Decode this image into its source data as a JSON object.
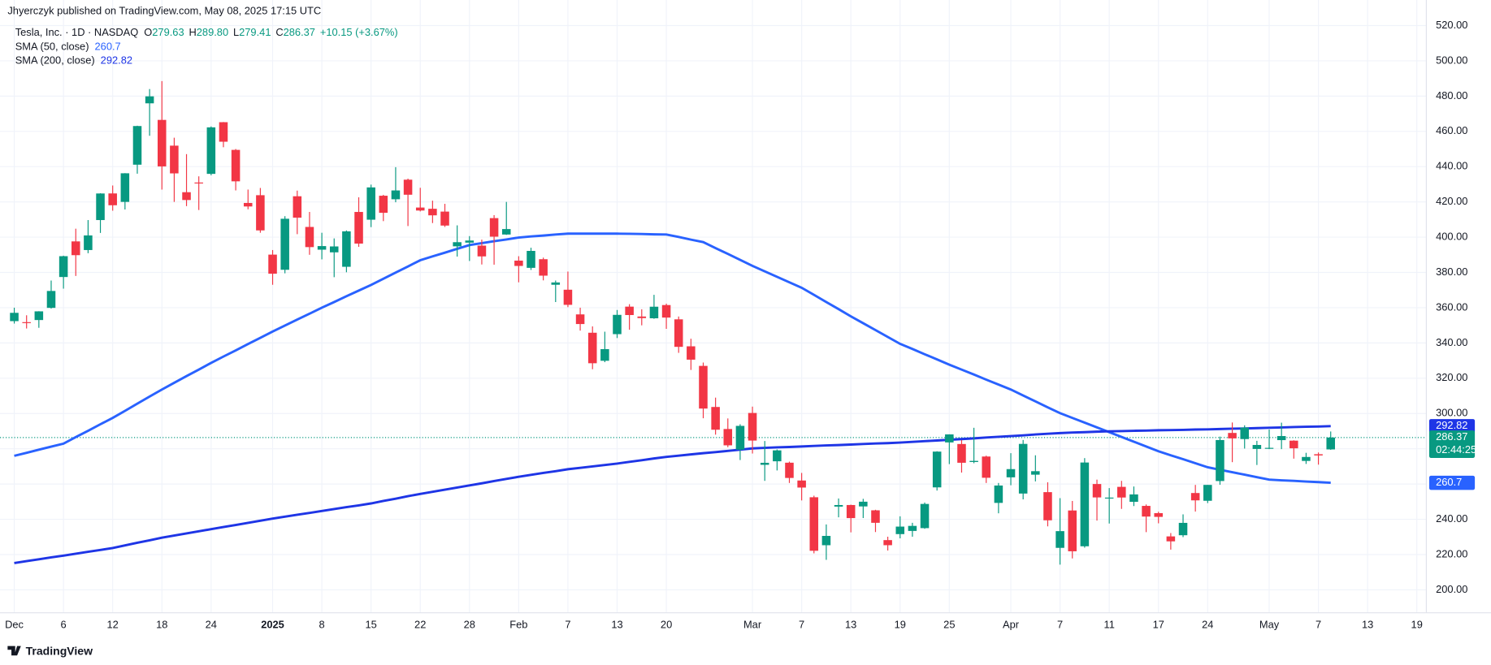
{
  "header": {
    "publisher": "Jhyerczyk published on TradingView.com, May 08, 2025 17:15 UTC",
    "symbol": "Tesla, Inc. · 1D · NASDAQ",
    "quote": [
      {
        "key": "O",
        "value": "279.63"
      },
      {
        "key": "H",
        "value": "289.80"
      },
      {
        "key": "L",
        "value": "279.41"
      },
      {
        "key": "C",
        "value": "286.37"
      }
    ],
    "change": "+10.15 (+3.67%)"
  },
  "footer": {
    "brand": "TradingView"
  },
  "chart_data": {
    "type": "candlestick",
    "categories": [
      "Dec",
      null,
      null,
      null,
      "6",
      null,
      null,
      null,
      "12",
      null,
      null,
      null,
      "18",
      null,
      null,
      null,
      "24",
      null,
      null,
      null,
      null,
      "2025",
      null,
      null,
      null,
      "8",
      null,
      null,
      null,
      "15",
      null,
      null,
      null,
      "22",
      null,
      null,
      null,
      "28",
      null,
      null,
      null,
      "Feb",
      null,
      null,
      null,
      "7",
      null,
      null,
      null,
      "13",
      null,
      null,
      null,
      "20",
      null,
      null,
      null,
      null,
      null,
      null,
      "Mar",
      null,
      null,
      null,
      "7",
      null,
      null,
      null,
      "13",
      null,
      null,
      null,
      "19",
      null,
      null,
      null,
      "25",
      null,
      null,
      null,
      null,
      "Apr",
      null,
      null,
      null,
      "7",
      null,
      null,
      null,
      "11",
      null,
      null,
      null,
      "17",
      null,
      null,
      null,
      "24",
      null,
      null,
      null,
      null,
      "May",
      null,
      null,
      null,
      "7",
      null,
      null,
      null,
      "13",
      null,
      null,
      null,
      "19"
    ],
    "open": [
      352.38,
      351.8,
      353,
      359.9,
      377.4,
      397.6,
      392.7,
      409.7,
      424.8,
      420,
      441.1,
      475.9,
      466.5,
      451.9,
      425.5,
      431,
      435.9,
      465.2,
      449.5,
      419.4,
      423.8,
      390.1,
      381.5,
      423.2,
      405.8,
      392.9,
      391.4,
      383.2,
      414.3,
      409.9,
      423.5,
      421.5,
      432.6,
      416.8,
      416.1,
      414.5,
      394.8,
      396.9,
      395.2,
      410.8,
      401.5,
      386.7,
      382.6,
      387.5,
      373,
      370.2,
      356.2,
      345.8,
      329.9,
      345,
      360.6,
      355,
      354,
      361.5,
      353.4,
      338.1,
      327,
      303.7,
      291.2,
      279.5,
      300.3,
      270.9,
      272.9,
      272.1,
      262,
      252.5,
      225.3,
      247.2,
      248.1,
      247.3,
      245.1,
      228.2,
      231.6,
      233.4,
      234.99,
      258.1,
      283.6,
      282.7,
      272.5,
      275.6,
      249.3,
      263.8,
      254.6,
      265.3,
      255.4,
      223.8,
      245,
      224.7,
      260,
      251.8,
      258.4,
      249.9,
      247.6,
      243.5,
      230.3,
      230.96,
      254.9,
      250.5,
      261.7,
      288.98,
      285.5,
      279.9,
      280,
      284.9,
      284.6,
      273.1,
      276.9,
      279.63,
      null,
      null,
      null,
      null,
      null,
      null,
      null
    ],
    "high": [
      360,
      355.7,
      358,
      375.4,
      389.5,
      404.8,
      409.7,
      424.9,
      429.3,
      436.3,
      463.2,
      484,
      488.5,
      456.4,
      447.1,
      434.5,
      462.8,
      465.3,
      450,
      427,
      427.9,
      392.7,
      411.9,
      426.4,
      414.3,
      402.5,
      399.3,
      403.8,
      422.6,
      429.8,
      424,
      439.7,
      433.2,
      428,
      420.7,
      418.9,
      406.7,
      400.6,
      398.6,
      412.5,
      420,
      389.2,
      394,
      388.4,
      375.4,
      380.5,
      360,
      349.4,
      346.4,
      358.7,
      362,
      359.1,
      367.3,
      362.3,
      355,
      342.4,
      328.9,
      309,
      297.2,
      293.9,
      303.9,
      284.4,
      279.6,
      272.7,
      266.3,
      253.4,
      237.1,
      251.8,
      248.3,
      251.6,
      245.4,
      230.1,
      241.7,
      238,
      249.5,
      278.6,
      288.2,
      284.9,
      291.9,
      276.1,
      260.6,
      277.5,
      285,
      276.3,
      261,
      252,
      250.4,
      274.7,
      262.5,
      257.7,
      261.8,
      258.6,
      248.4,
      244.3,
      232.2,
      242.8,
      259.5,
      259.5,
      286.9,
      294.9,
      293.3,
      284.5,
      290.9,
      294.8,
      284.8,
      277.7,
      277.9,
      289.8,
      null,
      null,
      null,
      null,
      null,
      null,
      null
    ],
    "low": [
      351,
      348.2,
      348.6,
      359.5,
      370.8,
      378,
      390.9,
      402.4,
      415,
      415.7,
      436,
      457.5,
      427,
      420,
      417.6,
      415.4,
      435.1,
      451,
      426.5,
      415.8,
      402.5,
      373,
      379.5,
      401.7,
      390,
      387.4,
      377.3,
      380.1,
      394.5,
      405.7,
      409.1,
      419.8,
      406.3,
      414.6,
      408,
      405.8,
      389,
      386.5,
      384.5,
      384.4,
      401.3,
      374.4,
      381.4,
      375.5,
      363.2,
      360.3,
      347,
      325.1,
      329.1,
      342.8,
      347.5,
      350,
      353.7,
      348,
      334.4,
      324.7,
      297.3,
      288,
      280.9,
      273.6,
      277.3,
      261.8,
      267.7,
      260.6,
      250.7,
      220.7,
      217,
      241.1,
      232.6,
      240.7,
      232.8,
      222.3,
      229.2,
      230.1,
      234.6,
      256.3,
      271.3,
      266.5,
      271.8,
      260.6,
      243.4,
      259.3,
      251.3,
      261.5,
      236,
      214.3,
      217.8,
      223.9,
      239.3,
      237.6,
      245.9,
      247.5,
      232.7,
      237.7,
      222.8,
      229.9,
      244.4,
      249.2,
      259.6,
      272.4,
      280.1,
      270.8,
      279.8,
      279.8,
      274.4,
      271.4,
      271,
      279.41,
      null,
      null,
      null,
      null,
      null,
      null,
      null
    ],
    "close": [
      357.09,
      351.42,
      357.93,
      369.49,
      389.22,
      389.79,
      400.99,
      424.77,
      418.1,
      436.23,
      463.02,
      479.86,
      440.13,
      436.17,
      421.06,
      430.6,
      462.28,
      454.13,
      431.66,
      417.41,
      403.84,
      379.28,
      410.44,
      411.05,
      394.36,
      394.94,
      394.74,
      403.31,
      396.36,
      428.22,
      413.82,
      426.5,
      424.07,
      415.11,
      412.38,
      406.58,
      397.15,
      398.09,
      389.1,
      400.28,
      404.6,
      383.68,
      392.21,
      378.17,
      374.32,
      361.62,
      350.73,
      328.5,
      336.51,
      355.94,
      355.84,
      354.11,
      360.56,
      354.4,
      337.8,
      330.53,
      302.8,
      290.8,
      281.95,
      292.98,
      284.65,
      272.04,
      279.1,
      263.45,
      258,
      222.15,
      230.58,
      248.09,
      240.68,
      249.98,
      238.01,
      225.31,
      235.86,
      236.26,
      248.71,
      278.39,
      288.14,
      272.06,
      273.13,
      263.55,
      259.16,
      268.46,
      282.76,
      267.28,
      239.43,
      233.29,
      221.86,
      272.2,
      252.4,
      252.31,
      252.35,
      254.11,
      241.55,
      241.37,
      227.5,
      237.97,
      250.74,
      259.51,
      284.95,
      285.88,
      292.03,
      282.16,
      280.52,
      287.21,
      280.26,
      275.35,
      276.22,
      286.37,
      null,
      null,
      null,
      null,
      null,
      null,
      null
    ],
    "up_color": "#089981",
    "down_color": "#f23645",
    "overlays": [
      {
        "name": "SMA (50, close)",
        "color": "#2962ff",
        "values": [
          276,
          277.7,
          279.5,
          281.2,
          282.9,
          286.6,
          290.2,
          293.9,
          297.5,
          301.5,
          305.6,
          309.6,
          313.6,
          317.4,
          321.2,
          324.9,
          328.7,
          332.3,
          335.8,
          339.4,
          342.9,
          346.5,
          349.9,
          353.3,
          356.6,
          360,
          363.2,
          366.5,
          369.7,
          372.9,
          376.4,
          379.9,
          383.4,
          386.9,
          389.1,
          391.2,
          393.4,
          395.5,
          396.6,
          397.7,
          398.7,
          399.8,
          400.4,
          400.9,
          401.5,
          402,
          402,
          402,
          402,
          402,
          401.9,
          401.8,
          401.6,
          401.5,
          400.1,
          398.6,
          397.2,
          393.8,
          390.5,
          387.1,
          383.7,
          380.6,
          377.5,
          374.4,
          371.3,
          367.3,
          363.2,
          359.2,
          355.1,
          351.2,
          347.3,
          343.4,
          339.5,
          336.6,
          333.6,
          330.7,
          327.7,
          324.9,
          322.1,
          319.2,
          316.4,
          313.6,
          310.2,
          306.9,
          303.5,
          300.2,
          297.5,
          294.8,
          292.1,
          289.4,
          286.7,
          284,
          281.3,
          278.6,
          276.3,
          274.1,
          271.8,
          269.5,
          268.1,
          266.7,
          265.3,
          263.9,
          262.5,
          262.1,
          261.8,
          261.4,
          261.1,
          260.7,
          null,
          null,
          null,
          null,
          null,
          null,
          null
        ]
      },
      {
        "name": "SMA (200, close)",
        "color": "#1e35e6",
        "values": [
          215.2,
          216.3,
          217.3,
          218.4,
          219.4,
          220.5,
          221.6,
          222.6,
          223.7,
          225.2,
          226.7,
          228.1,
          229.6,
          230.8,
          232,
          233.2,
          234.4,
          235.6,
          236.8,
          238,
          239.2,
          240.4,
          241.5,
          242.6,
          243.6,
          244.7,
          245.8,
          246.9,
          247.9,
          249,
          250.4,
          251.7,
          253.1,
          254.4,
          255.6,
          256.8,
          258,
          259.2,
          260.4,
          261.7,
          262.9,
          264.1,
          265.2,
          266.3,
          267.3,
          268.4,
          269.2,
          270,
          270.8,
          271.6,
          272.6,
          273.5,
          274.5,
          275.4,
          276.1,
          276.8,
          277.5,
          278.1,
          278.8,
          279.5,
          280.2,
          280.5,
          280.8,
          281,
          281.3,
          281.6,
          281.9,
          282.1,
          282.4,
          282.7,
          283,
          283.2,
          283.5,
          283.9,
          284.3,
          284.7,
          285.1,
          285.5,
          285.9,
          286.4,
          286.8,
          287.2,
          287.6,
          288.1,
          288.5,
          288.9,
          289.2,
          289.4,
          289.7,
          289.9,
          290,
          290.2,
          290.3,
          290.5,
          290.6,
          290.7,
          290.9,
          291,
          291.2,
          291.4,
          291.5,
          291.7,
          291.9,
          292.1,
          292.3,
          292.5,
          292.6,
          292.82,
          null,
          null,
          null,
          null,
          null,
          null,
          null
        ]
      }
    ],
    "ylim": [
      187,
      534.5
    ],
    "yticks": [
      {
        "value": 200,
        "label": "200.00"
      },
      {
        "value": 220,
        "label": "220.00"
      },
      {
        "value": 240,
        "label": "240.00"
      },
      {
        "value": 260,
        "label": "260.00"
      },
      {
        "value": 280,
        "label": "280.00"
      },
      {
        "value": 300,
        "label": "300.00"
      },
      {
        "value": 320,
        "label": "320.00"
      },
      {
        "value": 340,
        "label": "340.00"
      },
      {
        "value": 360,
        "label": "360.00"
      },
      {
        "value": 380,
        "label": "380.00"
      },
      {
        "value": 400,
        "label": "400.00"
      },
      {
        "value": 420,
        "label": "420.00"
      },
      {
        "value": 440,
        "label": "440.00"
      },
      {
        "value": 460,
        "label": "460.00"
      },
      {
        "value": 480,
        "label": "480.00"
      },
      {
        "value": 500,
        "label": "500.00"
      },
      {
        "value": 520,
        "label": "520.00"
      }
    ],
    "grid": true,
    "last_price_line": true,
    "countdown": "02:44:25"
  }
}
